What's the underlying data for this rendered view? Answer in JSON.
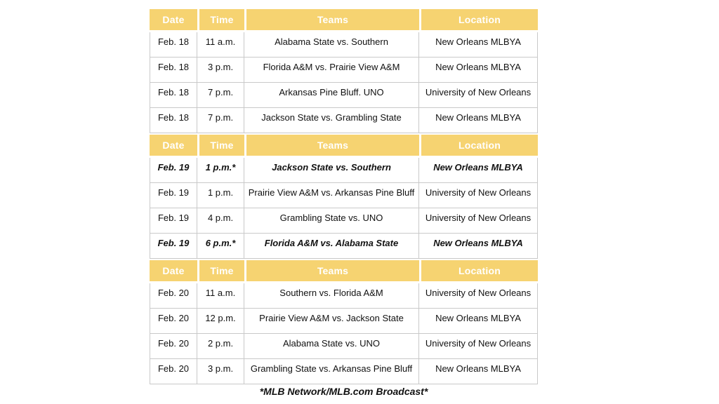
{
  "table": {
    "columns": {
      "date": "Date",
      "time": "Time",
      "teams": "Teams",
      "location": "Location"
    },
    "sections": [
      {
        "rows": [
          {
            "date": "Feb. 18",
            "time": "11 a.m.",
            "teams": "Alabama State vs. Southern",
            "location": "New Orleans MLBYA",
            "emphasized": false
          },
          {
            "date": "Feb. 18",
            "time": "3 p.m.",
            "teams": "Florida A&M vs. Prairie View A&M",
            "location": "New Orleans MLBYA",
            "emphasized": false
          },
          {
            "date": "Feb. 18",
            "time": "7 p.m.",
            "teams": "Arkansas Pine Bluff. UNO",
            "location": "University of New Orleans",
            "emphasized": false
          },
          {
            "date": "Feb. 18",
            "time": "7 p.m.",
            "teams": "Jackson State vs. Grambling State",
            "location": "New Orleans MLBYA",
            "emphasized": false
          }
        ]
      },
      {
        "rows": [
          {
            "date": "Feb. 19",
            "time": "1 p.m.*",
            "teams": "Jackson State vs. Southern",
            "location": "New Orleans MLBYA",
            "emphasized": true
          },
          {
            "date": "Feb. 19",
            "time": "1 p.m.",
            "teams": "Prairie View A&M vs. Arkansas Pine Bluff",
            "location": "University of New Orleans",
            "emphasized": false
          },
          {
            "date": "Feb. 19",
            "time": "4 p.m.",
            "teams": "Grambling State vs. UNO",
            "location": "University of New Orleans",
            "emphasized": false
          },
          {
            "date": "Feb. 19",
            "time": "6 p.m.*",
            "teams": "Florida A&M vs. Alabama State",
            "location": "New Orleans MLBYA",
            "emphasized": true
          }
        ]
      },
      {
        "rows": [
          {
            "date": "Feb. 20",
            "time": "11 a.m.",
            "teams": "Southern vs. Florida A&M",
            "location": "University of New Orleans",
            "emphasized": false
          },
          {
            "date": "Feb. 20",
            "time": "12 p.m.",
            "teams": "Prairie View A&M vs. Jackson State",
            "location": "New Orleans MLBYA",
            "emphasized": false
          },
          {
            "date": "Feb. 20",
            "time": "2 p.m.",
            "teams": "Alabama State vs. UNO",
            "location": "University of New Orleans",
            "emphasized": false
          },
          {
            "date": "Feb. 20",
            "time": "3 p.m.",
            "teams": "Grambling State vs. Arkansas Pine Bluff",
            "location": "New Orleans MLBYA",
            "emphasized": false
          }
        ]
      }
    ]
  },
  "footnote": "*MLB Network/MLB.com Broadcast*",
  "colors": {
    "header_bg": "#F6D371",
    "header_text": "#FFFFFF",
    "border": "#C9C9C9",
    "row_text": "#111111"
  }
}
